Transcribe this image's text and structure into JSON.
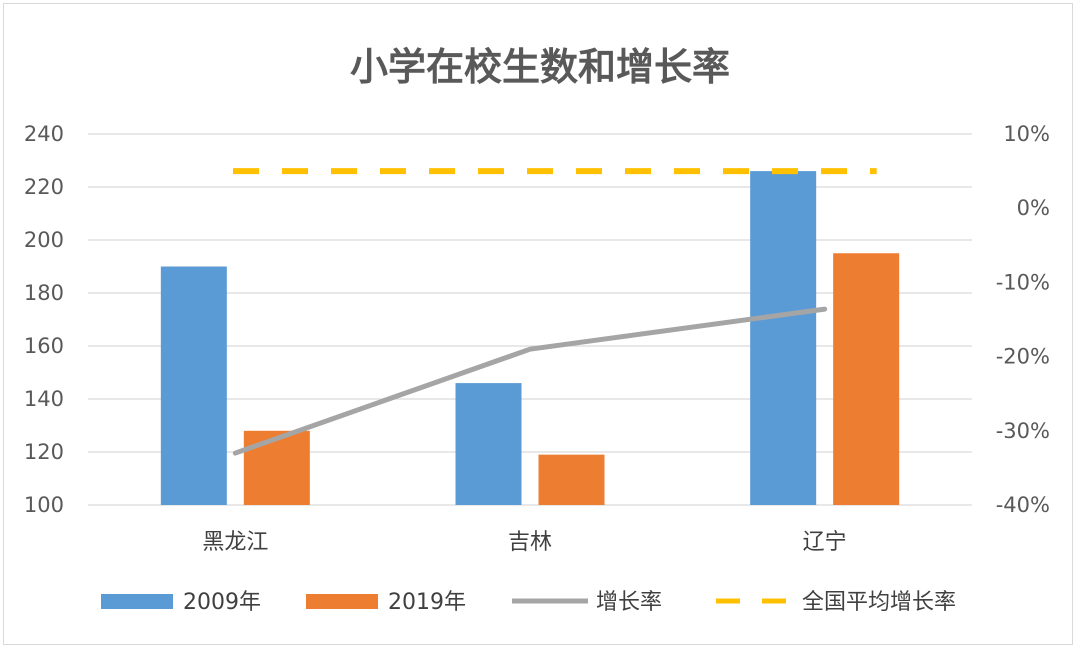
{
  "chart_data": {
    "type": "bar",
    "title": "小学在校生数和增长率",
    "categories": [
      "黑龙江",
      "吉林",
      "辽宁"
    ],
    "y_left": {
      "ticks": [
        "240",
        "220",
        "200",
        "180",
        "160",
        "140",
        "120",
        "100"
      ],
      "ylim": [
        100,
        240
      ]
    },
    "y_right": {
      "ticks": [
        "10%",
        "0%",
        "-10%",
        "-20%",
        "-30%",
        "-40%"
      ],
      "ylim": [
        -0.4,
        0.1
      ]
    },
    "series": [
      {
        "name": "2009年",
        "type": "bar",
        "axis": "left",
        "color": "#5b9bd5",
        "values": [
          190,
          146,
          226
        ]
      },
      {
        "name": "2019年",
        "type": "bar",
        "axis": "left",
        "color": "#ed7d31",
        "values": [
          128,
          119,
          195
        ]
      },
      {
        "name": "增长率",
        "type": "line",
        "axis": "right",
        "color": "#a5a5a5",
        "values": [
          -0.33,
          -0.19,
          -0.136
        ]
      },
      {
        "name": "全国平均增长率",
        "type": "line",
        "style": "dashed",
        "axis": "right",
        "color": "#ffc000",
        "values": [
          0.05,
          0.05,
          0.05
        ]
      }
    ],
    "grid": true,
    "legend": "bottom"
  }
}
